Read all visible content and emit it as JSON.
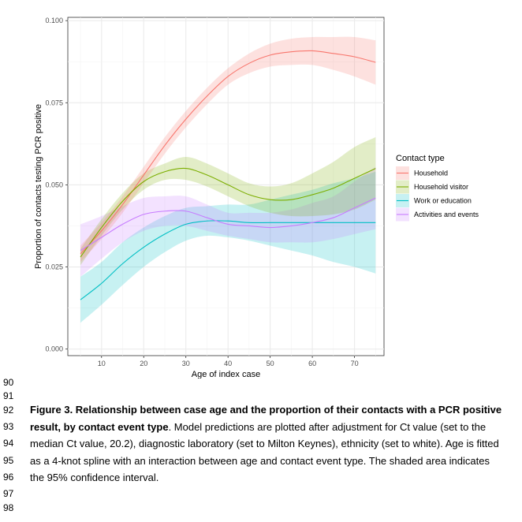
{
  "chart_data": {
    "type": "line",
    "xlabel": "Age of index case",
    "ylabel": "Proportion of contacts testing PCR positive",
    "xlim": [
      2,
      77
    ],
    "ylim": [
      -0.002,
      0.101
    ],
    "x_ticks": [
      10,
      20,
      30,
      40,
      50,
      60,
      70
    ],
    "x_tick_labels": [
      "10",
      "20",
      "30",
      "40",
      "50",
      "60",
      "70"
    ],
    "y_ticks": [
      0.0,
      0.025,
      0.05,
      0.075,
      0.1
    ],
    "y_tick_labels": [
      "0.000",
      "0.025",
      "0.050",
      "0.075",
      "0.100"
    ],
    "grid": true,
    "legend_title": "Contact type",
    "legend_position": "right",
    "x": [
      5,
      10,
      15,
      20,
      25,
      30,
      35,
      40,
      45,
      50,
      55,
      60,
      65,
      70,
      75
    ],
    "series": [
      {
        "name": "Household",
        "color": "#f8766d",
        "values": [
          0.029,
          0.036,
          0.044,
          0.053,
          0.062,
          0.07,
          0.077,
          0.083,
          0.087,
          0.0895,
          0.0905,
          0.0908,
          0.09,
          0.089,
          0.0873
        ],
        "lower": [
          0.0265,
          0.0335,
          0.0415,
          0.0505,
          0.0595,
          0.0675,
          0.0745,
          0.0805,
          0.084,
          0.086,
          0.0865,
          0.0865,
          0.085,
          0.083,
          0.0805
        ],
        "upper": [
          0.0315,
          0.0385,
          0.0465,
          0.0555,
          0.0645,
          0.0725,
          0.0795,
          0.0855,
          0.09,
          0.093,
          0.0945,
          0.095,
          0.095,
          0.095,
          0.094
        ]
      },
      {
        "name": "Household visitor",
        "color": "#7cae00",
        "values": [
          0.028,
          0.037,
          0.045,
          0.051,
          0.054,
          0.055,
          0.053,
          0.05,
          0.047,
          0.0455,
          0.0455,
          0.047,
          0.049,
          0.052,
          0.055
        ],
        "lower": [
          0.0255,
          0.0345,
          0.0425,
          0.0485,
          0.0515,
          0.0515,
          0.0495,
          0.0465,
          0.0435,
          0.0415,
          0.0405,
          0.0405,
          0.041,
          0.0425,
          0.0455
        ],
        "upper": [
          0.0305,
          0.0395,
          0.0475,
          0.0535,
          0.0565,
          0.0585,
          0.0565,
          0.0535,
          0.0505,
          0.0495,
          0.0505,
          0.0535,
          0.057,
          0.0615,
          0.0645
        ]
      },
      {
        "name": "Work or education",
        "color": "#00bfc4",
        "values": [
          0.015,
          0.02,
          0.026,
          0.031,
          0.035,
          0.038,
          0.039,
          0.039,
          0.0385,
          0.0385,
          0.0385,
          0.0385,
          0.0385,
          0.0385,
          0.0385
        ],
        "lower": [
          0.008,
          0.0135,
          0.0195,
          0.025,
          0.0295,
          0.033,
          0.0345,
          0.034,
          0.033,
          0.0315,
          0.03,
          0.0285,
          0.0265,
          0.025,
          0.023
        ],
        "upper": [
          0.022,
          0.0265,
          0.0325,
          0.037,
          0.0405,
          0.043,
          0.0435,
          0.044,
          0.044,
          0.0455,
          0.047,
          0.0485,
          0.0505,
          0.052,
          0.054
        ]
      },
      {
        "name": "Activities and events",
        "color": "#c77cff",
        "values": [
          0.03,
          0.034,
          0.038,
          0.041,
          0.042,
          0.042,
          0.04,
          0.038,
          0.0375,
          0.037,
          0.0375,
          0.0385,
          0.04,
          0.043,
          0.046
        ],
        "lower": [
          0.022,
          0.0275,
          0.0325,
          0.036,
          0.0375,
          0.0375,
          0.036,
          0.0345,
          0.0335,
          0.0325,
          0.0325,
          0.0325,
          0.0335,
          0.035,
          0.0365
        ],
        "upper": [
          0.038,
          0.0405,
          0.0435,
          0.046,
          0.0465,
          0.0465,
          0.044,
          0.0415,
          0.0415,
          0.0415,
          0.0425,
          0.0445,
          0.0465,
          0.051,
          0.0555
        ]
      }
    ]
  },
  "line_numbers": [
    "90",
    "91",
    "92",
    "93",
    "94",
    "95",
    "96",
    "97",
    "98"
  ],
  "caption": {
    "bold": "Figure 3. Relationship between case age and the proportion of their contacts with a PCR positive result, by contact event type",
    "text": ". Model predictions are plotted after adjustment for Ct value (set to the median Ct value, 20.2), diagnostic laboratory (set to Milton Keynes), ethnicity (set to white). Age is fitted as a 4-knot spline with an interaction between age and contact event type. The shaded area indicates the 95% confidence interval."
  }
}
